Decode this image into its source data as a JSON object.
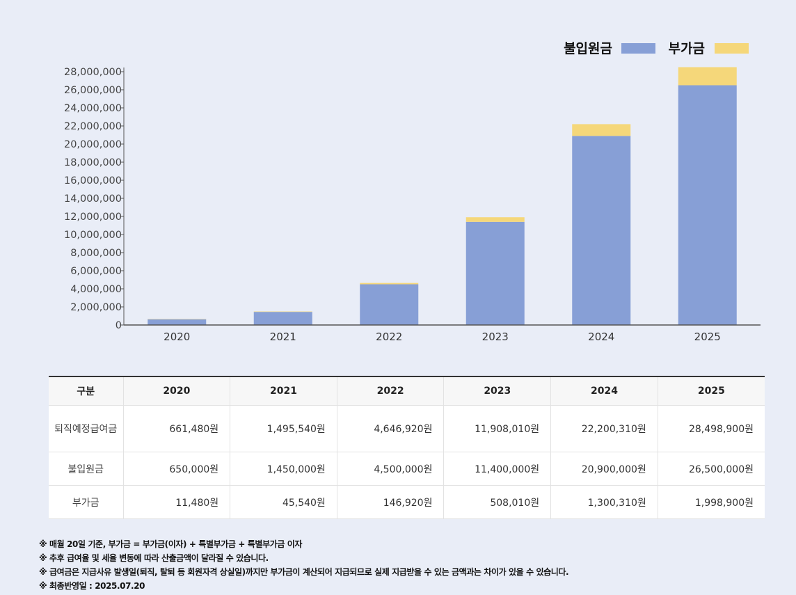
{
  "chart_data": {
    "type": "bar",
    "stacked": true,
    "categories": [
      "2020",
      "2021",
      "2022",
      "2023",
      "2024",
      "2025"
    ],
    "series": [
      {
        "name": "불입원금",
        "color": "#879fd6",
        "values": [
          650000,
          1450000,
          4500000,
          11400000,
          20900000,
          26500000
        ]
      },
      {
        "name": "부가금",
        "color": "#f5d77a",
        "values": [
          11480,
          45540,
          146920,
          508010,
          1300310,
          1998900
        ]
      }
    ],
    "yticks": [
      "0",
      "2,000,000",
      "4,000,000",
      "6,000,000",
      "8,000,000",
      "10,000,000",
      "12,000,000",
      "14,000,000",
      "16,000,000",
      "18,000,000",
      "20,000,000",
      "22,000,000",
      "24,000,000",
      "26,000,000",
      "28,000,000"
    ],
    "ylim": [
      0,
      28000000
    ],
    "legend_position": "top-right"
  },
  "table": {
    "headers": [
      "구분",
      "2020",
      "2021",
      "2022",
      "2023",
      "2024",
      "2025"
    ],
    "rows": [
      {
        "label": "퇴직예정급여금",
        "values": [
          "661,480원",
          "1,495,540원",
          "4,646,920원",
          "11,908,010원",
          "22,200,310원",
          "28,498,900원"
        ]
      },
      {
        "label": "불입원금",
        "values": [
          "650,000원",
          "1,450,000원",
          "4,500,000원",
          "11,400,000원",
          "20,900,000원",
          "26,500,000원"
        ]
      },
      {
        "label": "부가금",
        "values": [
          "11,480원",
          "45,540원",
          "146,920원",
          "508,010원",
          "1,300,310원",
          "1,998,900원"
        ]
      }
    ]
  },
  "notes": [
    "※ 매월 20일 기준, 부가금 = 부가금(이자) + 특별부가금 + 특별부가금 이자",
    "※ 추후 급여율 및 세율 변동에 따라 산출금액이 달라질 수 있습니다.",
    "※ 급여금은 지급사유 발생일(퇴직, 탈퇴 등 회원자격 상실일)까지만 부가금이 계산되어 지급되므로 실제 지급받을 수 있는 금액과는 차이가 있을 수 있습니다.",
    "※ 최종반영일 : 2025.07.20"
  ]
}
